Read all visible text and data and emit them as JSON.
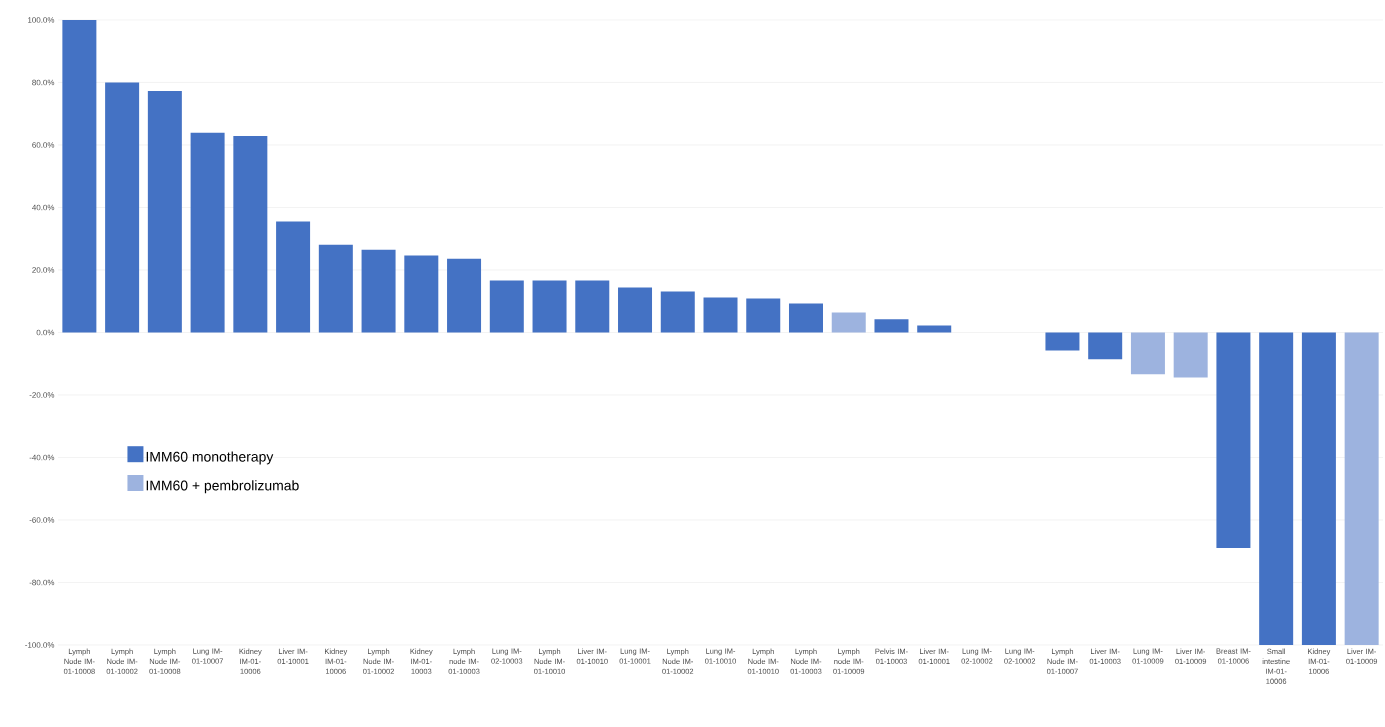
{
  "chart_data": {
    "type": "bar",
    "categories": [
      "Lymph Node IM-01-10008",
      "Lymph Node IM-01-10002",
      "Lymph Node IM-01-10008",
      "Lung IM-01-10007",
      "Kidney IM-01-10006",
      "Liver IM-01-10001",
      "Kidney IM-01-10006",
      "Lymph Node IM-01-10002",
      "Kidney IM-01-10003",
      "Lymph node IM-01-10003",
      "Lung IM-02-10003",
      "Lymph Node IM-01-10010",
      "Liver IM-01-10010",
      "Lung IM-01-10001",
      "Lymph Node IM-01-10002",
      "Lung IM-01-10010",
      "Lymph Node IM-01-10010",
      "Lymph Node IM-01-10003",
      "Lymph node IM-01-10009",
      "Pelvis IM-01-10003",
      "Liver IM-01-10001",
      "Lung IM-02-10002",
      "Lung IM-02-10002",
      "Lymph Node IM-01-10007",
      "Liver IM-01-10003",
      "Lung IM-01-10009",
      "Liver IM-01-10009",
      "Breast IM-01-10006",
      "Small intestine IM-01-10006",
      "Kidney IM-01-10006",
      "Liver IM-01-10009"
    ],
    "series": [
      {
        "name": "IMM60 monotherapy",
        "color": "#4472c4",
        "values": [
          100,
          80,
          77.3,
          63.9,
          62.9,
          35.5,
          28.1,
          26.5,
          24.6,
          23.6,
          16.6,
          16.6,
          16.6,
          14.4,
          13.1,
          11.2,
          10.9,
          9.3,
          null,
          4.2,
          2.2,
          0,
          0,
          -5.8,
          -8.6,
          null,
          null,
          -69,
          -100,
          -100,
          null
        ]
      },
      {
        "name": "IMM60 + pembrolizumab",
        "color": "#9db3df",
        "values": [
          null,
          null,
          null,
          null,
          null,
          null,
          null,
          null,
          null,
          null,
          null,
          null,
          null,
          null,
          null,
          null,
          null,
          null,
          6.4,
          null,
          null,
          null,
          null,
          null,
          null,
          -13.4,
          -14.4,
          null,
          null,
          null,
          -100
        ]
      }
    ],
    "ylim": [
      -100,
      100
    ],
    "yticks": [
      {
        "value": -100,
        "label": "-100.0%"
      },
      {
        "value": -80,
        "label": "-80.0%"
      },
      {
        "value": -60,
        "label": "-60.0%"
      },
      {
        "value": -40,
        "label": "-40.0%"
      },
      {
        "value": -20,
        "label": "-20.0%"
      },
      {
        "value": 0,
        "label": "0.0%"
      },
      {
        "value": 20,
        "label": "20.0%"
      },
      {
        "value": 40,
        "label": "40.0%"
      },
      {
        "value": 60,
        "label": "60.0%"
      },
      {
        "value": 80,
        "label": "80.0%"
      },
      {
        "value": 100,
        "label": "100.0%"
      }
    ],
    "grid": "y",
    "legend": "left"
  }
}
